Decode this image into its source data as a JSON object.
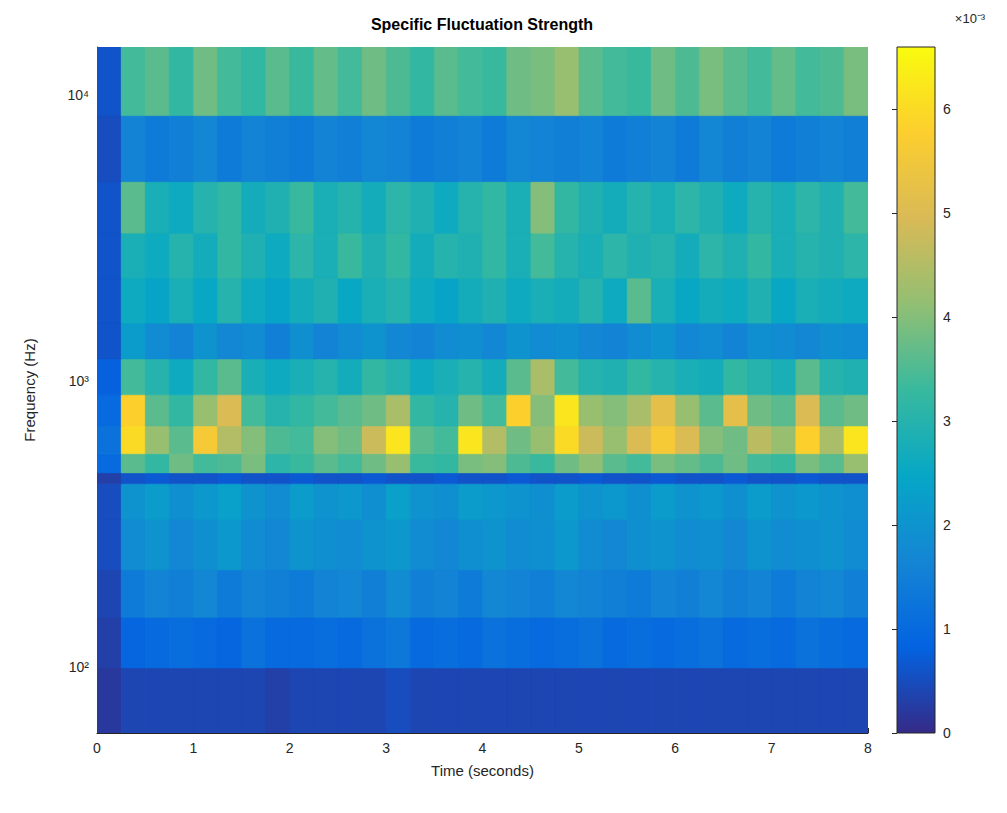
{
  "chart_data": {
    "type": "heatmap",
    "title": "Specific Fluctuation Strength",
    "x_label": "Time (seconds)",
    "y_label": "Frequency (Hz)",
    "log": "y",
    "xlim": [
      0,
      8
    ],
    "xticks": [
      0,
      1,
      2,
      3,
      4,
      5,
      6,
      7,
      8
    ],
    "ylim": [
      59,
      14700
    ],
    "yticks": [
      {
        "value": 100,
        "label": "10²"
      },
      {
        "value": 1000,
        "label": "10³"
      },
      {
        "value": 10000,
        "label": "10⁴"
      }
    ],
    "time_edges": [
      0,
      0.25,
      0.5,
      0.75,
      1,
      1.25,
      1.5,
      1.75,
      2,
      2.25,
      2.5,
      2.75,
      3,
      3.25,
      3.5,
      3.75,
      4,
      4.25,
      4.5,
      4.75,
      5,
      5.25,
      5.5,
      5.75,
      6,
      6.25,
      6.5,
      6.75,
      7,
      7.25,
      7.5,
      7.75,
      8
    ],
    "frequency_edges": [
      59,
      100,
      150,
      220,
      330,
      440,
      480,
      560,
      700,
      900,
      1200,
      1600,
      2300,
      3300,
      5000,
      8500,
      14700
    ],
    "cells": [
      [
        0.2,
        0.4,
        0.4,
        0.4,
        0.4,
        0.4,
        0.4,
        0.3,
        0.4,
        0.4,
        0.4,
        0.4,
        0.5,
        0.4,
        0.4,
        0.4,
        0.4,
        0.4,
        0.4,
        0.4,
        0.4,
        0.4,
        0.4,
        0.4,
        0.4,
        0.4,
        0.4,
        0.4,
        0.4,
        0.4,
        0.4,
        0.4
      ],
      [
        0.3,
        0.9,
        1.0,
        1.1,
        1.0,
        0.9,
        1.2,
        1.0,
        1.0,
        1.1,
        1.0,
        1.2,
        1.3,
        1.0,
        1.1,
        1.0,
        1.2,
        1.1,
        1.0,
        1.1,
        1.2,
        1.0,
        1.1,
        1.0,
        1.1,
        1.2,
        1.0,
        1.1,
        1.0,
        1.2,
        1.1,
        1.0
      ],
      [
        0.4,
        1.4,
        1.6,
        1.5,
        1.7,
        1.4,
        1.6,
        1.5,
        1.4,
        1.6,
        1.7,
        1.5,
        1.8,
        1.5,
        1.6,
        1.4,
        1.7,
        1.6,
        1.5,
        1.7,
        1.6,
        1.5,
        1.4,
        1.6,
        1.5,
        1.7,
        1.5,
        1.6,
        1.4,
        1.6,
        1.7,
        1.5
      ],
      [
        0.5,
        1.8,
        2.0,
        1.7,
        1.9,
        2.1,
        1.8,
        1.7,
        2.0,
        1.9,
        1.8,
        2.0,
        2.1,
        1.8,
        1.7,
        1.9,
        2.0,
        1.8,
        1.9,
        2.1,
        1.8,
        1.7,
        1.9,
        2.0,
        1.8,
        1.9,
        1.7,
        2.0,
        1.8,
        1.9,
        2.0,
        1.8
      ],
      [
        0.5,
        2.0,
        2.2,
        1.9,
        2.1,
        2.3,
        2.0,
        1.8,
        2.2,
        2.0,
        2.1,
        1.9,
        2.3,
        2.0,
        1.9,
        2.2,
        2.1,
        2.0,
        1.9,
        2.2,
        2.0,
        2.1,
        1.9,
        2.2,
        2.0,
        2.1,
        1.9,
        2.2,
        2.0,
        2.1,
        2.0,
        1.9
      ],
      [
        0.3,
        0.6,
        0.7,
        0.6,
        0.6,
        0.7,
        0.6,
        0.6,
        0.7,
        0.6,
        0.6,
        0.7,
        0.6,
        0.6,
        0.7,
        0.6,
        0.6,
        0.7,
        0.6,
        0.6,
        0.7,
        0.6,
        0.6,
        0.7,
        0.6,
        0.6,
        0.7,
        0.6,
        0.6,
        0.7,
        0.6,
        0.6
      ],
      [
        1.0,
        3.6,
        3.2,
        3.8,
        3.4,
        3.5,
        3.9,
        3.1,
        3.3,
        3.6,
        3.4,
        3.8,
        4.2,
        3.3,
        3.2,
        3.9,
        4.0,
        3.5,
        3.3,
        3.8,
        4.1,
        3.6,
        3.4,
        3.9,
        3.7,
        3.5,
        3.8,
        3.4,
        3.3,
        3.9,
        3.6,
        4.2
      ],
      [
        1.2,
        6.0,
        4.2,
        3.6,
        5.6,
        4.5,
        4.0,
        3.5,
        3.4,
        4.0,
        3.8,
        4.8,
        6.2,
        3.6,
        3.4,
        6.2,
        4.5,
        3.8,
        4.2,
        6.0,
        4.8,
        4.2,
        5.0,
        5.6,
        5.0,
        4.0,
        3.8,
        4.6,
        4.2,
        5.8,
        4.4,
        6.2
      ],
      [
        1.0,
        5.8,
        3.6,
        3.2,
        4.2,
        5.0,
        3.4,
        3.0,
        3.2,
        3.4,
        3.6,
        3.8,
        4.4,
        3.2,
        3.0,
        3.8,
        3.4,
        5.8,
        4.0,
        6.2,
        4.2,
        4.0,
        4.4,
        5.2,
        4.2,
        3.6,
        5.2,
        3.8,
        3.6,
        5.0,
        3.6,
        3.8
      ],
      [
        0.8,
        3.4,
        3.0,
        2.6,
        3.2,
        3.6,
        2.8,
        2.6,
        2.8,
        3.0,
        2.7,
        3.2,
        3.0,
        2.6,
        2.8,
        3.0,
        2.7,
        3.6,
        4.4,
        3.4,
        3.0,
        2.9,
        3.2,
        3.0,
        2.8,
        2.7,
        3.2,
        3.0,
        2.8,
        3.6,
        3.0,
        2.9
      ],
      [
        0.6,
        2.2,
        1.8,
        1.6,
        2.0,
        1.7,
        1.8,
        1.5,
        1.9,
        1.6,
        1.8,
        2.0,
        1.7,
        1.6,
        1.8,
        1.9,
        1.7,
        2.0,
        1.8,
        1.9,
        1.7,
        1.6,
        1.8,
        2.0,
        1.7,
        1.8,
        1.6,
        1.9,
        1.8,
        1.7,
        1.9,
        1.8
      ],
      [
        0.6,
        2.6,
        2.4,
        2.8,
        2.5,
        3.0,
        2.6,
        2.4,
        2.7,
        2.9,
        2.5,
        2.8,
        3.0,
        2.6,
        2.4,
        2.7,
        2.9,
        2.6,
        2.8,
        2.7,
        3.0,
        2.6,
        3.6,
        2.8,
        2.5,
        2.7,
        2.6,
        2.9,
        2.5,
        2.8,
        2.7,
        2.6
      ],
      [
        0.6,
        2.8,
        2.6,
        3.0,
        2.7,
        3.2,
        2.9,
        2.6,
        3.1,
        2.8,
        3.3,
        2.9,
        3.2,
        2.7,
        3.0,
        2.9,
        3.2,
        2.8,
        3.4,
        3.0,
        2.8,
        3.1,
        2.9,
        3.0,
        2.7,
        3.1,
        2.9,
        3.2,
        2.8,
        3.0,
        2.9,
        3.1
      ],
      [
        0.6,
        3.6,
        2.8,
        2.6,
        3.0,
        3.2,
        2.7,
        2.9,
        3.3,
        2.8,
        3.0,
        2.7,
        3.1,
        2.9,
        2.6,
        3.0,
        3.2,
        2.8,
        4.0,
        3.2,
        2.9,
        2.7,
        3.0,
        2.8,
        3.1,
        2.9,
        2.6,
        3.0,
        2.8,
        3.1,
        2.9,
        3.4
      ],
      [
        0.5,
        1.6,
        1.4,
        1.5,
        1.7,
        1.4,
        1.6,
        1.5,
        1.4,
        1.6,
        1.5,
        1.7,
        1.6,
        1.4,
        1.5,
        1.6,
        1.4,
        1.7,
        1.6,
        1.5,
        1.6,
        1.4,
        1.5,
        1.6,
        1.4,
        1.7,
        1.5,
        1.6,
        1.4,
        1.5,
        1.6,
        1.5
      ],
      [
        0.6,
        3.4,
        3.6,
        3.2,
        3.8,
        3.4,
        3.2,
        3.6,
        3.3,
        3.7,
        3.4,
        3.8,
        3.5,
        3.2,
        3.6,
        3.4,
        3.3,
        3.8,
        3.9,
        4.2,
        3.6,
        3.4,
        3.3,
        3.8,
        3.5,
        3.9,
        3.6,
        3.4,
        3.7,
        3.4,
        3.5,
        3.9
      ]
    ],
    "colorbar": {
      "clim": [
        0,
        6.6
      ],
      "ticks": [
        0,
        1,
        2,
        3,
        4,
        5,
        6
      ],
      "label": "×10⁻³"
    }
  }
}
